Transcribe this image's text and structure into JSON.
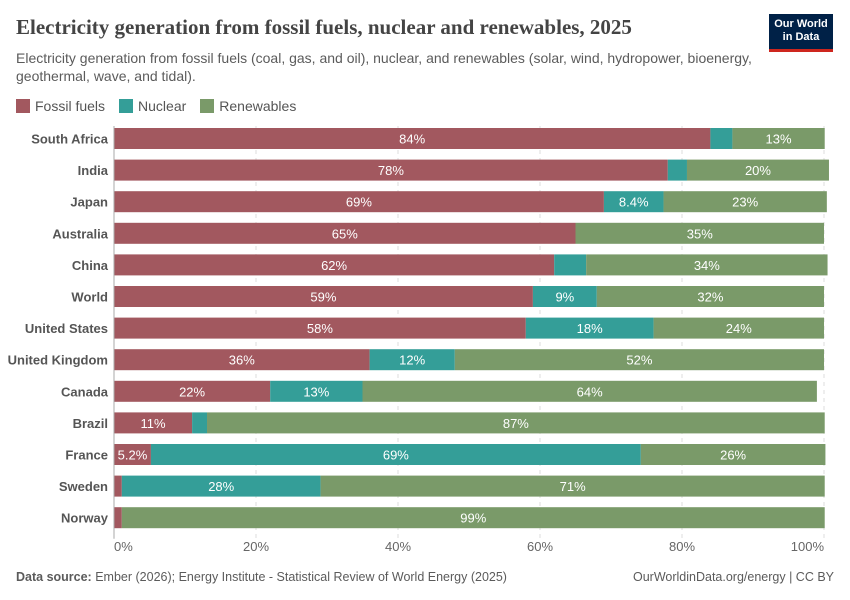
{
  "header": {
    "title": "Electricity generation from fossil fuels, nuclear and renewables, 2025",
    "subtitle": "Electricity generation from fossil fuels (coal, gas, and oil), nuclear, and renewables (solar, wind, hydropower, bioenergy, geothermal, wave, and tidal).",
    "logo": "Our World in Data"
  },
  "footer": {
    "source_label": "Data source:",
    "source": "Ember (2026); Energy Institute - Statistical Review of World Energy (2025)",
    "credit": "OurWorldinData.org/energy | CC BY"
  },
  "colors": {
    "Fossil fuels": "#a2585f",
    "Nuclear": "#349e98",
    "Renewables": "#7a9a69"
  },
  "chart_data": {
    "type": "bar",
    "orientation": "horizontal",
    "stacked": true,
    "title": "Electricity generation from fossil fuels, nuclear and renewables, 2025",
    "categories": [
      "South Africa",
      "India",
      "Japan",
      "Australia",
      "China",
      "World",
      "United States",
      "United Kingdom",
      "Canada",
      "Brazil",
      "France",
      "Sweden",
      "Norway"
    ],
    "series": [
      {
        "name": "Fossil fuels",
        "values": [
          84,
          78,
          69,
          65,
          62,
          59,
          58,
          36,
          22,
          11,
          5.2,
          1.1,
          1.1
        ],
        "labels": [
          "84%",
          "78%",
          "69%",
          "65%",
          "62%",
          "59%",
          "58%",
          "36%",
          "22%",
          "11%",
          "5.2%",
          "",
          ""
        ]
      },
      {
        "name": "Nuclear",
        "values": [
          3.1,
          2.7,
          8.4,
          0,
          4.5,
          9,
          18,
          12,
          13,
          2.1,
          69,
          28,
          0
        ],
        "labels": [
          "",
          "",
          "8.4%",
          "",
          "",
          "9%",
          "18%",
          "12%",
          "13%",
          "",
          "69%",
          "28%",
          ""
        ]
      },
      {
        "name": "Renewables",
        "values": [
          13,
          20,
          23,
          35,
          34,
          32,
          24,
          52,
          64,
          87,
          26,
          71,
          99
        ],
        "labels": [
          "13%",
          "20%",
          "23%",
          "35%",
          "34%",
          "32%",
          "24%",
          "52%",
          "64%",
          "87%",
          "26%",
          "71%",
          "99%"
        ]
      }
    ],
    "xlim": [
      0,
      100
    ],
    "xticks": [
      "0%",
      "20%",
      "40%",
      "60%",
      "80%",
      "100%"
    ],
    "grid": true,
    "legend": "top-left"
  }
}
